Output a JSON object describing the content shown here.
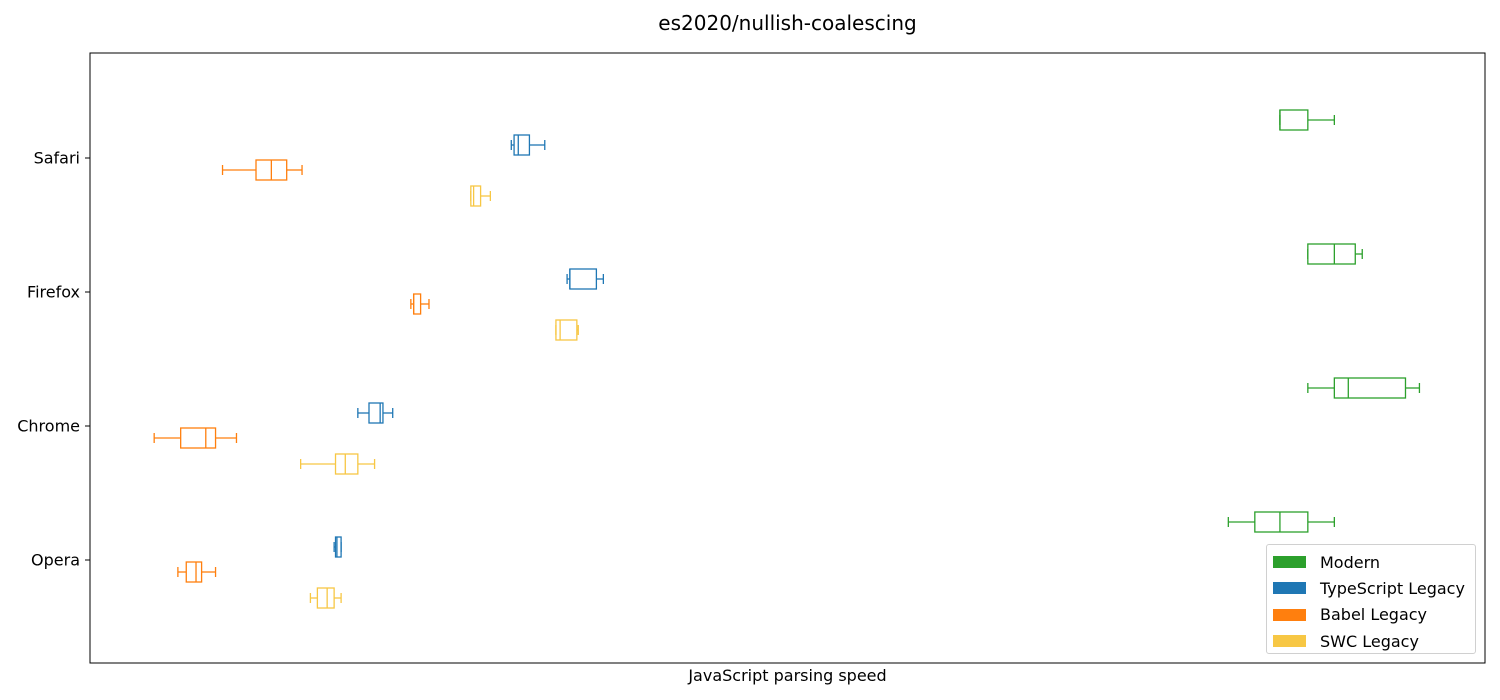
{
  "chart_data": {
    "type": "boxplot",
    "orientation": "horizontal",
    "title": "es2020/nullish-coalescing",
    "xlabel": "JavaScript parsing speed",
    "ylabel": "",
    "xticks_shown": false,
    "categories": [
      "Safari",
      "Firefox",
      "Chrome",
      "Opera"
    ],
    "xlim": [
      0,
      1000
    ],
    "grid": false,
    "legend_position": "lower-right",
    "series": [
      {
        "name": "Modern",
        "color": "#2ca02c",
        "boxes": {
          "Safari": {
            "whislo": 853,
            "q1": 853,
            "med": 853,
            "q3": 873,
            "whishi": 892
          },
          "Firefox": {
            "whislo": 873,
            "q1": 873,
            "med": 892,
            "q3": 907,
            "whishi": 912
          },
          "Chrome": {
            "whislo": 873,
            "q1": 892,
            "med": 902,
            "q3": 943,
            "whishi": 953
          },
          "Opera": {
            "whislo": 816,
            "q1": 835,
            "med": 853,
            "q3": 873,
            "whishi": 892
          }
        }
      },
      {
        "name": "TypeScript Legacy",
        "color": "#1f77b4",
        "boxes": {
          "Safari": {
            "whislo": 302,
            "q1": 304,
            "med": 307,
            "q3": 315,
            "whishi": 326
          },
          "Firefox": {
            "whislo": 342,
            "q1": 344,
            "med": 344,
            "q3": 363,
            "whishi": 368
          },
          "Chrome": {
            "whislo": 192,
            "q1": 200,
            "med": 208,
            "q3": 210,
            "whishi": 217
          },
          "Opera": {
            "whislo": 175,
            "q1": 176,
            "med": 177,
            "q3": 180,
            "whishi": 180
          }
        }
      },
      {
        "name": "Babel Legacy",
        "color": "#ff7f0e",
        "boxes": {
          "Safari": {
            "whislo": 95,
            "q1": 119,
            "med": 130,
            "q3": 141,
            "whishi": 152
          },
          "Firefox": {
            "whislo": 230,
            "q1": 232,
            "med": 232,
            "q3": 237,
            "whishi": 243
          },
          "Chrome": {
            "whislo": 46,
            "q1": 65,
            "med": 83,
            "q3": 90,
            "whishi": 105
          },
          "Opera": {
            "whislo": 63,
            "q1": 69,
            "med": 76,
            "q3": 80,
            "whishi": 90
          }
        }
      },
      {
        "name": "SWC Legacy",
        "color": "#f7c744",
        "boxes": {
          "Safari": {
            "whislo": 273,
            "q1": 273,
            "med": 275,
            "q3": 280,
            "whishi": 287
          },
          "Firefox": {
            "whislo": 334,
            "q1": 334,
            "med": 337,
            "q3": 349,
            "whishi": 350
          },
          "Chrome": {
            "whislo": 151,
            "q1": 176,
            "med": 183,
            "q3": 192,
            "whishi": 204
          },
          "Opera": {
            "whislo": 158,
            "q1": 163,
            "med": 170,
            "q3": 175,
            "whishi": 180
          }
        }
      }
    ]
  }
}
